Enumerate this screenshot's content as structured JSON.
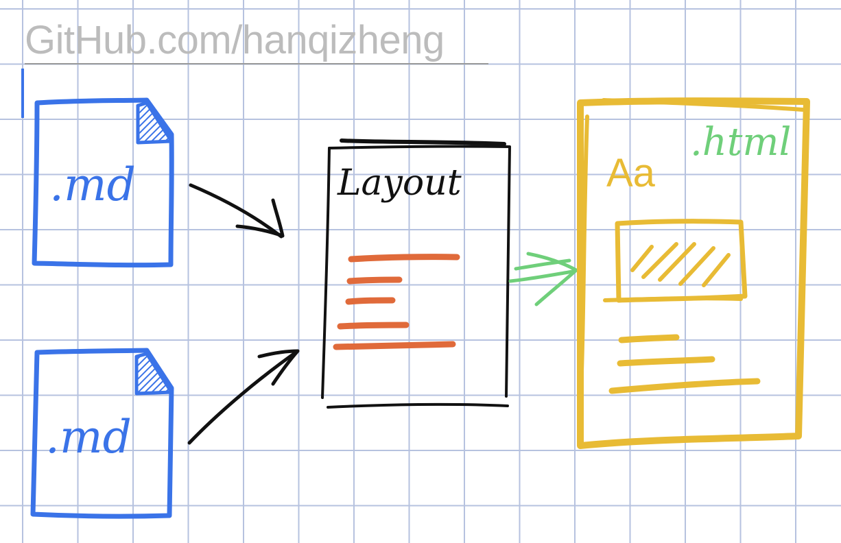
{
  "watermark": {
    "text": "GitHub.com/hanqizheng"
  },
  "source_files": [
    {
      "label": ".md"
    },
    {
      "label": ".md"
    }
  ],
  "layout_box": {
    "title": "Layout"
  },
  "output_box": {
    "extension": ".html",
    "font_sample": "Aa"
  },
  "colors": {
    "grid": "#b6c2df",
    "markdown": "#3a73e8",
    "layout": "#111111",
    "layout_lines": "#e06a3a",
    "output": "#e8bb35",
    "output_arrow": "#6fcf7a",
    "watermark": "#bcbcbc"
  }
}
